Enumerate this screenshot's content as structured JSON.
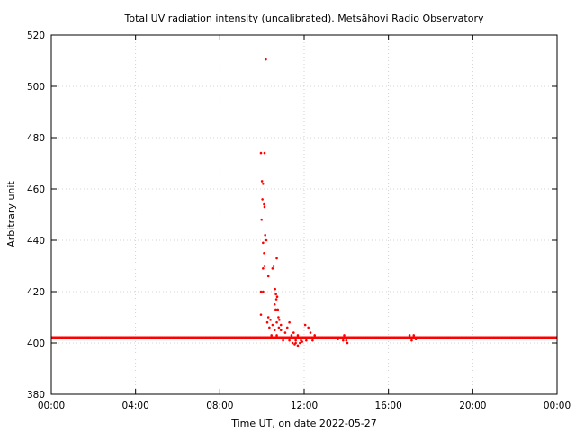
{
  "chart_data": {
    "type": "scatter",
    "title": "Total UV radiation intensity (uncalibrated). Metsähovi Radio Observatory",
    "xlabel": "Time UT, on date 2022-05-27",
    "ylabel": "Arbitrary unit",
    "xlim": [
      0,
      24
    ],
    "ylim": [
      380,
      520
    ],
    "x_ticks": [
      {
        "value": 0,
        "label": "00:00"
      },
      {
        "value": 4,
        "label": "04:00"
      },
      {
        "value": 8,
        "label": "08:00"
      },
      {
        "value": 12,
        "label": "12:00"
      },
      {
        "value": 16,
        "label": "16:00"
      },
      {
        "value": 20,
        "label": "20:00"
      },
      {
        "value": 24,
        "label": "00:00"
      }
    ],
    "y_ticks": [
      380,
      400,
      420,
      440,
      460,
      480,
      500,
      520
    ],
    "grid": true,
    "color": "#ff0000",
    "baseline": {
      "value": 402,
      "x_range": [
        0,
        24
      ]
    },
    "series": [
      {
        "points": [
          [
            9.95,
            474
          ],
          [
            10.12,
            474
          ],
          [
            10.18,
            510.5
          ],
          [
            10.0,
            463
          ],
          [
            10.05,
            462
          ],
          [
            10.02,
            456
          ],
          [
            10.1,
            454
          ],
          [
            10.12,
            453
          ],
          [
            9.98,
            448
          ],
          [
            10.15,
            442
          ],
          [
            10.05,
            439
          ],
          [
            10.2,
            440
          ],
          [
            10.1,
            435
          ],
          [
            10.05,
            429
          ],
          [
            10.12,
            430
          ],
          [
            10.3,
            426
          ],
          [
            10.5,
            429
          ],
          [
            10.55,
            430
          ],
          [
            10.7,
            433
          ],
          [
            9.95,
            420
          ],
          [
            10.05,
            420
          ],
          [
            10.62,
            421
          ],
          [
            10.66,
            419
          ],
          [
            10.72,
            418
          ],
          [
            10.68,
            417
          ],
          [
            10.6,
            415
          ],
          [
            10.65,
            413
          ],
          [
            10.75,
            413
          ],
          [
            9.95,
            411
          ],
          [
            10.3,
            410
          ],
          [
            10.4,
            409
          ],
          [
            10.78,
            410
          ],
          [
            10.82,
            409
          ],
          [
            10.25,
            408
          ],
          [
            10.7,
            408
          ],
          [
            11.3,
            408
          ],
          [
            10.5,
            407
          ],
          [
            10.9,
            407
          ],
          [
            12.05,
            407
          ],
          [
            10.35,
            406
          ],
          [
            10.8,
            406
          ],
          [
            11.2,
            406
          ],
          [
            12.2,
            406
          ],
          [
            10.6,
            405
          ],
          [
            10.9,
            405
          ],
          [
            11.1,
            404
          ],
          [
            11.5,
            404
          ],
          [
            12.3,
            404
          ],
          [
            10.45,
            403
          ],
          [
            10.7,
            403
          ],
          [
            11.4,
            403
          ],
          [
            11.7,
            403
          ],
          [
            12.5,
            403
          ],
          [
            10.55,
            402
          ],
          [
            11.0,
            401
          ],
          [
            11.3,
            401
          ],
          [
            11.6,
            401
          ],
          [
            11.85,
            401
          ],
          [
            12.1,
            401
          ],
          [
            11.45,
            400
          ],
          [
            11.6,
            400
          ],
          [
            11.9,
            400.5
          ],
          [
            12.4,
            401
          ],
          [
            11.55,
            399.5
          ],
          [
            11.7,
            399
          ],
          [
            11.8,
            400
          ],
          [
            12.8,
            402
          ],
          [
            13.2,
            402
          ],
          [
            13.7,
            402
          ],
          [
            13.9,
            403
          ],
          [
            14.0,
            401
          ],
          [
            14.05,
            400
          ],
          [
            13.85,
            401
          ],
          [
            13.6,
            401.5
          ],
          [
            14.1,
            402
          ],
          [
            17.0,
            403
          ],
          [
            17.1,
            401
          ],
          [
            17.2,
            403
          ],
          [
            17.3,
            401.5
          ],
          [
            17.4,
            402
          ],
          [
            16.95,
            402
          ]
        ]
      }
    ]
  }
}
